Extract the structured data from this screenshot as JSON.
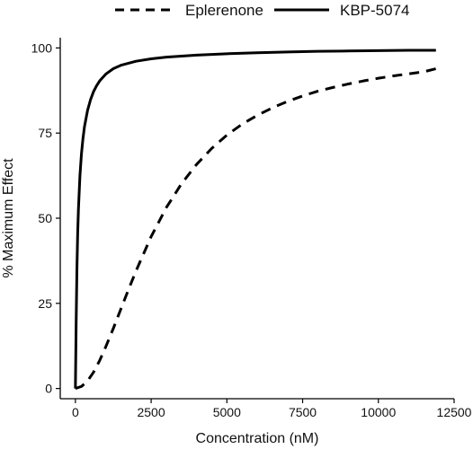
{
  "chart_data": {
    "type": "line",
    "xlabel": "Concentration (nM)",
    "ylabel": "% Maximum Effect",
    "xlim": [
      -500,
      12500
    ],
    "ylim": [
      -3,
      103
    ],
    "x_ticks": [
      0,
      2500,
      5000,
      7500,
      10000,
      12500
    ],
    "x_tick_labels": [
      "0",
      "2500",
      "5000",
      "7500",
      "10000",
      "12500"
    ],
    "y_ticks": [
      0,
      25,
      50,
      75,
      100
    ],
    "y_tick_labels": [
      "0",
      "25",
      "50",
      "75",
      "100"
    ],
    "grid": false,
    "legend_position": "top",
    "series": [
      {
        "name": "Eplerenone",
        "style": "dashed",
        "color": "#000000",
        "x": [
          0,
          200,
          400,
          600,
          800,
          1000,
          1250,
          1500,
          1750,
          2000,
          2500,
          3000,
          3500,
          4000,
          4500,
          5000,
          5500,
          6000,
          6500,
          7000,
          7500,
          8000,
          8500,
          9000,
          9500,
          10000,
          10500,
          11000,
          11500,
          11900
        ],
        "y": [
          0,
          0.6,
          2.2,
          4.8,
          8.2,
          12.2,
          17.6,
          23.3,
          29.0,
          34.5,
          44.6,
          53.1,
          60.1,
          65.8,
          70.5,
          74.4,
          77.6,
          80.2,
          82.4,
          84.3,
          85.9,
          87.3,
          88.4,
          89.4,
          90.3,
          91.1,
          91.8,
          92.4,
          93.0,
          93.9
        ]
      },
      {
        "name": "KBP-5074",
        "style": "solid",
        "color": "#000000",
        "x": [
          0,
          25,
          50,
          75,
          100,
          150,
          200,
          250,
          300,
          400,
          500,
          600,
          700,
          800,
          1000,
          1250,
          1500,
          2000,
          2500,
          3000,
          4000,
          5000,
          6000,
          7000,
          8000,
          9000,
          10000,
          11000,
          11900
        ],
        "y": [
          0,
          19.3,
          34.9,
          45.4,
          52.6,
          62.5,
          68.9,
          73.4,
          76.9,
          81.6,
          84.8,
          87.2,
          88.9,
          90.3,
          92.3,
          93.9,
          94.9,
          96.1,
          96.8,
          97.3,
          97.9,
          98.3,
          98.6,
          98.8,
          99.0,
          99.1,
          99.2,
          99.3,
          99.3
        ]
      }
    ]
  }
}
